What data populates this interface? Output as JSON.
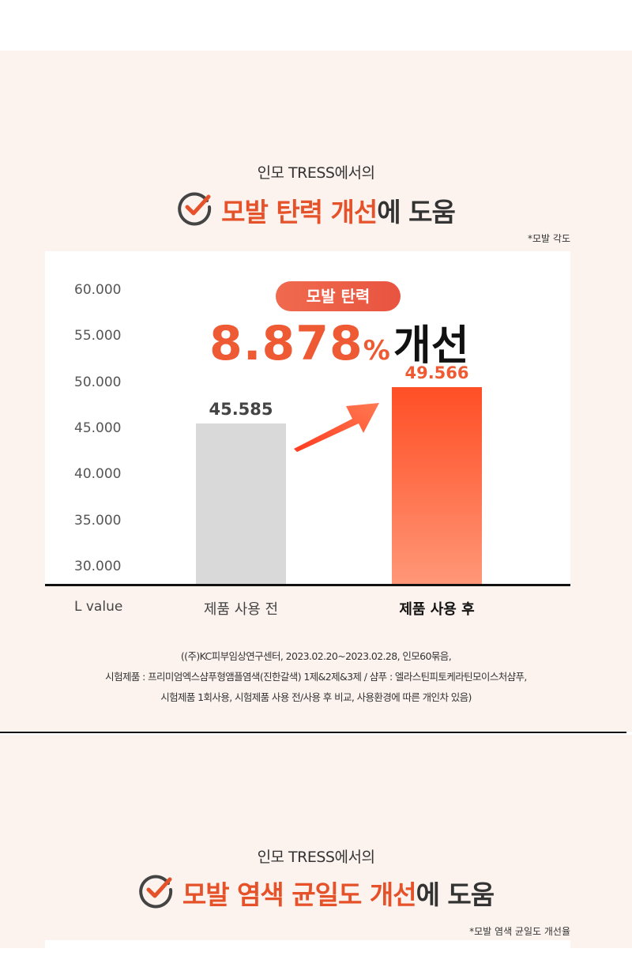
{
  "section1": {
    "kicker": "인모 TRESS에서의",
    "headline_highlight": "모발 탄력 개선",
    "headline_rest": "에 도움",
    "note": "*모발 각도",
    "badge": "모발 탄력",
    "improvement_value": "8.878",
    "improvement_unit": "%",
    "improvement_word": "개선",
    "source_lines": [
      "((주)KC피부임상연구센터, 2023.02.20~2023.02.28, 인모60묶음,",
      "시험제품 : 프리미엄엑스샴푸형앰플염색(진한갈색) 1제&2제&3제 / 샴푸 : 엘라스틴피토케라틴모이스처샴푸,",
      "시험제품 1회사용, 시험제품 사용 전/사용 후 비교, 사용환경에 따른 개인차 있음)"
    ]
  },
  "chart_data": {
    "type": "bar",
    "categories": [
      "제품 사용 전",
      "제품 사용 후"
    ],
    "values": [
      45.585,
      49.566
    ],
    "value_labels": [
      "45.585",
      "49.566"
    ],
    "xlabel": "L value",
    "ylim": [
      30,
      60
    ],
    "yticks": [
      "60.000",
      "55.000",
      "50.000",
      "45.000",
      "40.000",
      "35.000",
      "30.000"
    ],
    "grid": false,
    "colors": {
      "before": "#d9d9d9",
      "after": "#ff5a33",
      "before_label": "#444444",
      "after_label": "#ee5a33"
    }
  },
  "section2": {
    "kicker": "인모 TRESS에서의",
    "headline_highlight": "모발 염색 균일도 개선",
    "headline_rest": "에 도움",
    "note": "*모발 염색 균일도 개선율"
  }
}
